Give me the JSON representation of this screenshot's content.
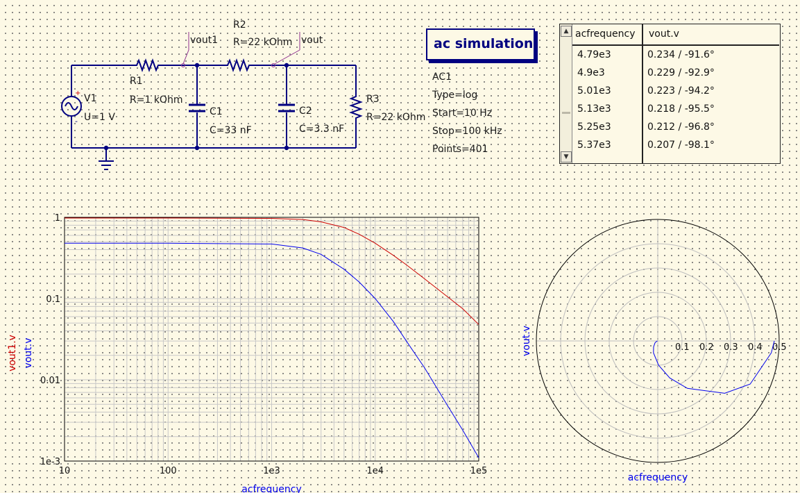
{
  "schematic": {
    "components": {
      "r1": {
        "name": "R1",
        "value": "R=1 kOhm"
      },
      "r2": {
        "name": "R2",
        "value": "R=22 kOhm"
      },
      "r3": {
        "name": "R3",
        "value": "R=22 kOhm"
      },
      "c1": {
        "name": "C1",
        "value": "C=33 nF"
      },
      "c2": {
        "name": "C2",
        "value": "C=3.3 nF"
      },
      "v1": {
        "name": "V1",
        "value": "U=1 V"
      }
    },
    "labels": {
      "vout1": "vout1",
      "vout": "vout"
    },
    "source_polarity": {
      "plus": "+",
      "minus": "-"
    }
  },
  "simulation": {
    "title": "ac simulation",
    "name": "AC1",
    "type": "Type=log",
    "start": "Start=10 Hz",
    "stop": "Stop=100 kHz",
    "points": "Points=401"
  },
  "table": {
    "headers": [
      "acfrequency",
      "vout.v"
    ],
    "rows": [
      [
        "4.79e3",
        "0.234 / -91.6°"
      ],
      [
        "4.9e3",
        "0.229 / -92.9°"
      ],
      [
        "5.01e3",
        "0.223 / -94.2°"
      ],
      [
        "5.13e3",
        "0.218 / -95.5°"
      ],
      [
        "5.25e3",
        "0.212 / -96.8°"
      ],
      [
        "5.37e3",
        "0.207 / -98.1°"
      ]
    ],
    "scroll_up": "▲",
    "scroll_down": "▼"
  },
  "colors": {
    "wire": "#000080",
    "vout1": "#cc0000",
    "vout": "#0000ee",
    "grid": "#c8c8c8"
  },
  "chart_data": [
    {
      "type": "line",
      "xlabel": "acfrequency",
      "ylabels": [
        {
          "text": "vout1.v",
          "color": "#cc0000"
        },
        {
          "text": "vout.v",
          "color": "#0000ee"
        }
      ],
      "x_scale": "log",
      "y_scale": "log",
      "xlim": [
        10,
        100000
      ],
      "ylim": [
        0.001,
        1
      ],
      "x_ticks": [
        {
          "value": 10,
          "label": "10"
        },
        {
          "value": 100,
          "label": "100"
        },
        {
          "value": 1000,
          "label": "1e3"
        },
        {
          "value": 10000,
          "label": "1e4"
        },
        {
          "value": 100000,
          "label": "1e5"
        }
      ],
      "y_ticks": [
        {
          "value": 1,
          "label": "1"
        },
        {
          "value": 0.1,
          "label": "0.1"
        },
        {
          "value": 0.01,
          "label": "0.01"
        },
        {
          "value": 0.001,
          "label": "1e-3"
        }
      ],
      "grid": true,
      "series": [
        {
          "name": "vout1.v",
          "color": "#cc0000",
          "x": [
            10,
            100,
            1000,
            2000,
            3000,
            5000,
            7000,
            10000,
            15000,
            20000,
            30000,
            50000,
            70000,
            100000
          ],
          "values": [
            0.98,
            0.98,
            0.97,
            0.94,
            0.88,
            0.75,
            0.62,
            0.48,
            0.34,
            0.26,
            0.175,
            0.105,
            0.075,
            0.048
          ]
        },
        {
          "name": "vout.v",
          "color": "#0000ee",
          "x": [
            10,
            100,
            1000,
            2000,
            3000,
            5000,
            7000,
            10000,
            15000,
            20000,
            30000,
            50000,
            70000,
            100000
          ],
          "values": [
            0.48,
            0.48,
            0.47,
            0.42,
            0.35,
            0.23,
            0.16,
            0.1,
            0.052,
            0.03,
            0.014,
            0.0048,
            0.0024,
            0.0011
          ]
        }
      ]
    },
    {
      "type": "polar",
      "xlabel": "acfrequency",
      "ylabel": "vout.v",
      "rmax": 0.5,
      "r_ticks": [
        {
          "value": 0.1,
          "label": "0.1"
        },
        {
          "value": 0.2,
          "label": "0.2"
        },
        {
          "value": 0.3,
          "label": "0.3"
        },
        {
          "value": 0.4,
          "label": "0.4"
        },
        {
          "value": 0.5,
          "label": "0.5"
        }
      ],
      "grid": true,
      "series": [
        {
          "name": "vout.v",
          "color": "#0000ee",
          "magnitude": [
            0.48,
            0.47,
            0.42,
            0.35,
            0.23,
            0.16,
            0.1,
            0.052,
            0.03,
            0.014,
            0.0048,
            0.0024,
            0.0011
          ],
          "phase_deg": [
            0,
            -6,
            -25,
            -38,
            -58,
            -72,
            -88,
            -110,
            -125,
            -145,
            -162,
            -168,
            -172
          ]
        }
      ]
    }
  ]
}
